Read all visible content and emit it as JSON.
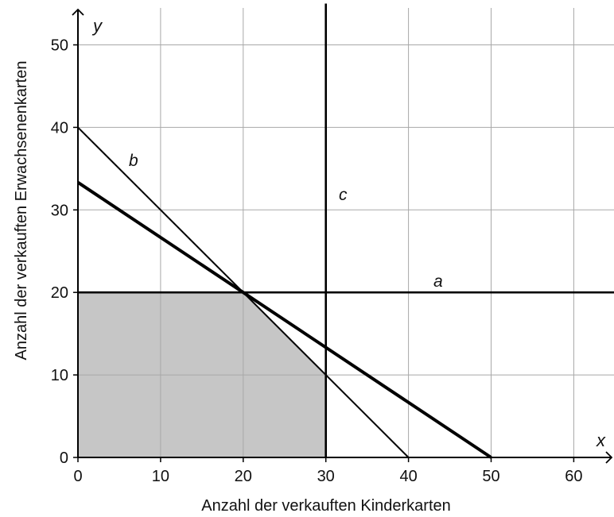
{
  "chart_data": {
    "type": "line",
    "xlabel": "Anzahl der verkauften Kinderkarten",
    "ylabel": "Anzahl der verkauften Erwachsenenkarten",
    "x_var": "x",
    "y_var": "y",
    "xlim": [
      0,
      65
    ],
    "ylim": [
      0,
      55
    ],
    "x_ticks": [
      "0",
      "10",
      "20",
      "30",
      "40",
      "50",
      "60"
    ],
    "y_ticks": [
      "0",
      "10",
      "20",
      "30",
      "40",
      "50"
    ],
    "grid": true,
    "series": [
      {
        "name": "a",
        "x": [
          0,
          65
        ],
        "y": [
          20,
          20
        ]
      },
      {
        "name": "b",
        "x": [
          0,
          40
        ],
        "y": [
          40,
          0
        ]
      },
      {
        "name": "c",
        "x": [
          30,
          30
        ],
        "y": [
          0,
          55
        ]
      },
      {
        "name": "",
        "x": [
          0,
          50
        ],
        "y": [
          33.33,
          0
        ]
      }
    ],
    "shaded_region": {
      "vertices": [
        [
          0,
          0
        ],
        [
          0,
          20
        ],
        [
          20,
          20
        ],
        [
          30,
          10
        ],
        [
          30,
          0
        ]
      ]
    },
    "colors": {
      "shade": "#c6c6c6",
      "grid": "#a8a8a8",
      "line": "#000000"
    }
  }
}
